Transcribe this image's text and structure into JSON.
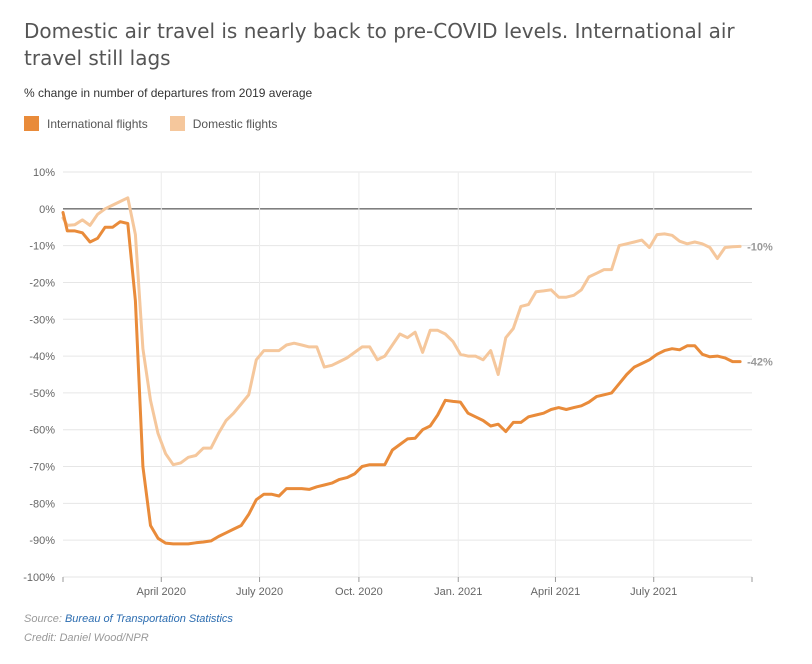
{
  "title": "Domestic air travel is nearly back to pre-COVID levels. International air travel still lags",
  "subtitle": "% change in number of departures from 2019 average",
  "legend": [
    {
      "label": "International flights",
      "color": "#e98b3a"
    },
    {
      "label": "Domestic flights",
      "color": "#f5c79c"
    }
  ],
  "footer": {
    "source_prefix": "Source: ",
    "source_link": "Bureau of Transportation Statistics",
    "credit": "Credit: Daniel Wood/NPR"
  },
  "chart_data": {
    "type": "line",
    "ylim": [
      -100,
      10
    ],
    "yticks": [
      10,
      0,
      -10,
      -20,
      -30,
      -40,
      -50,
      -60,
      -70,
      -80,
      -90,
      -100
    ],
    "ytick_labels": [
      "10%",
      "0%",
      "-10%",
      "-20%",
      "-30%",
      "-40%",
      "-50%",
      "-60%",
      "-70%",
      "-80%",
      "-90%",
      "-100%"
    ],
    "xlim": [
      "2020-01-01",
      "2021-09-30"
    ],
    "xticks": [
      "2020-04-01",
      "2020-07-01",
      "2020-10-01",
      "2021-01-01",
      "2021-04-01",
      "2021-07-01"
    ],
    "xtick_labels": [
      "April 2020",
      "July 2020",
      "Oct. 2020",
      "Jan. 2021",
      "April 2021",
      "July 2021"
    ],
    "grid": true,
    "legend_position": "top-left",
    "series": [
      {
        "name": "International flights",
        "color": "#e98b3a",
        "end_label": "-42%",
        "points": [
          [
            "2020-01-01",
            -1
          ],
          [
            "2020-01-05",
            -6
          ],
          [
            "2020-01-12",
            -6
          ],
          [
            "2020-01-19",
            -6.5
          ],
          [
            "2020-01-26",
            -9
          ],
          [
            "2020-02-02",
            -8
          ],
          [
            "2020-02-09",
            -5
          ],
          [
            "2020-02-16",
            -5
          ],
          [
            "2020-02-23",
            -3.5
          ],
          [
            "2020-03-01",
            -4
          ],
          [
            "2020-03-08",
            -25
          ],
          [
            "2020-03-15",
            -70
          ],
          [
            "2020-03-22",
            -86
          ],
          [
            "2020-03-29",
            -89.5
          ],
          [
            "2020-04-05",
            -90.8
          ],
          [
            "2020-04-12",
            -91
          ],
          [
            "2020-04-19",
            -91
          ],
          [
            "2020-04-26",
            -91
          ],
          [
            "2020-05-03",
            -90.7
          ],
          [
            "2020-05-10",
            -90.5
          ],
          [
            "2020-05-17",
            -90.2
          ],
          [
            "2020-05-24",
            -89
          ],
          [
            "2020-05-31",
            -88
          ],
          [
            "2020-06-07",
            -87
          ],
          [
            "2020-06-14",
            -86
          ],
          [
            "2020-06-21",
            -83
          ],
          [
            "2020-06-28",
            -79
          ],
          [
            "2020-07-05",
            -77.5
          ],
          [
            "2020-07-12",
            -77.5
          ],
          [
            "2020-07-19",
            -78
          ],
          [
            "2020-07-26",
            -76
          ],
          [
            "2020-08-02",
            -76
          ],
          [
            "2020-08-09",
            -76
          ],
          [
            "2020-08-16",
            -76.2
          ],
          [
            "2020-08-23",
            -75.5
          ],
          [
            "2020-08-30",
            -75
          ],
          [
            "2020-09-06",
            -74.5
          ],
          [
            "2020-09-13",
            -73.5
          ],
          [
            "2020-09-20",
            -73
          ],
          [
            "2020-09-27",
            -72
          ],
          [
            "2020-10-04",
            -70
          ],
          [
            "2020-10-11",
            -69.5
          ],
          [
            "2020-10-18",
            -69.5
          ],
          [
            "2020-10-25",
            -69.5
          ],
          [
            "2020-11-01",
            -65.5
          ],
          [
            "2020-11-08",
            -64
          ],
          [
            "2020-11-15",
            -62.5
          ],
          [
            "2020-11-22",
            -62.3
          ],
          [
            "2020-11-29",
            -60
          ],
          [
            "2020-12-06",
            -59
          ],
          [
            "2020-12-13",
            -56
          ],
          [
            "2020-12-20",
            -52
          ],
          [
            "2020-12-27",
            -52.3
          ],
          [
            "2021-01-03",
            -52.5
          ],
          [
            "2021-01-10",
            -55.5
          ],
          [
            "2021-01-17",
            -56.5
          ],
          [
            "2021-01-24",
            -57.5
          ],
          [
            "2021-01-31",
            -59
          ],
          [
            "2021-02-07",
            -58.5
          ],
          [
            "2021-02-14",
            -60.5
          ],
          [
            "2021-02-21",
            -58
          ],
          [
            "2021-02-28",
            -58
          ],
          [
            "2021-03-07",
            -56.5
          ],
          [
            "2021-03-14",
            -56
          ],
          [
            "2021-03-21",
            -55.5
          ],
          [
            "2021-03-28",
            -54.5
          ],
          [
            "2021-04-04",
            -54
          ],
          [
            "2021-04-11",
            -54.5
          ],
          [
            "2021-04-18",
            -54
          ],
          [
            "2021-04-25",
            -53.5
          ],
          [
            "2021-05-02",
            -52.5
          ],
          [
            "2021-05-09",
            -51
          ],
          [
            "2021-05-16",
            -50.5
          ],
          [
            "2021-05-23",
            -50
          ],
          [
            "2021-05-30",
            -47.5
          ],
          [
            "2021-06-06",
            -45
          ],
          [
            "2021-06-13",
            -43
          ],
          [
            "2021-06-20",
            -42
          ],
          [
            "2021-06-27",
            -41
          ],
          [
            "2021-07-04",
            -39.5
          ],
          [
            "2021-07-11",
            -38.5
          ],
          [
            "2021-07-18",
            -38
          ],
          [
            "2021-07-25",
            -38.3
          ],
          [
            "2021-08-01",
            -37.2
          ],
          [
            "2021-08-08",
            -37.2
          ],
          [
            "2021-08-15",
            -39.5
          ],
          [
            "2021-08-22",
            -40.2
          ],
          [
            "2021-08-29",
            -40
          ],
          [
            "2021-09-05",
            -40.5
          ],
          [
            "2021-09-12",
            -41.5
          ],
          [
            "2021-09-19",
            -41.5
          ]
        ]
      },
      {
        "name": "Domestic flights",
        "color": "#f5c79c",
        "end_label": "-10%",
        "points": [
          [
            "2020-01-01",
            -2.5
          ],
          [
            "2020-01-05",
            -4.5
          ],
          [
            "2020-01-12",
            -4.3
          ],
          [
            "2020-01-19",
            -3
          ],
          [
            "2020-01-26",
            -4.5
          ],
          [
            "2020-02-02",
            -1.5
          ],
          [
            "2020-02-09",
            0
          ],
          [
            "2020-02-16",
            1
          ],
          [
            "2020-02-23",
            2
          ],
          [
            "2020-03-01",
            3
          ],
          [
            "2020-03-08",
            -7
          ],
          [
            "2020-03-15",
            -38
          ],
          [
            "2020-03-22",
            -52
          ],
          [
            "2020-03-29",
            -61
          ],
          [
            "2020-04-05",
            -66.5
          ],
          [
            "2020-04-12",
            -69.5
          ],
          [
            "2020-04-19",
            -69
          ],
          [
            "2020-04-26",
            -67.5
          ],
          [
            "2020-05-03",
            -67
          ],
          [
            "2020-05-10",
            -65
          ],
          [
            "2020-05-17",
            -65
          ],
          [
            "2020-05-24",
            -61
          ],
          [
            "2020-05-31",
            -57.5
          ],
          [
            "2020-06-07",
            -55.5
          ],
          [
            "2020-06-14",
            -53
          ],
          [
            "2020-06-21",
            -50.5
          ],
          [
            "2020-06-28",
            -41
          ],
          [
            "2020-07-05",
            -38.5
          ],
          [
            "2020-07-12",
            -38.5
          ],
          [
            "2020-07-19",
            -38.5
          ],
          [
            "2020-07-26",
            -37
          ],
          [
            "2020-08-02",
            -36.5
          ],
          [
            "2020-08-09",
            -37
          ],
          [
            "2020-08-16",
            -37.5
          ],
          [
            "2020-08-23",
            -37.5
          ],
          [
            "2020-08-30",
            -43
          ],
          [
            "2020-09-06",
            -42.5
          ],
          [
            "2020-09-13",
            -41.5
          ],
          [
            "2020-09-20",
            -40.5
          ],
          [
            "2020-09-27",
            -39
          ],
          [
            "2020-10-04",
            -37.5
          ],
          [
            "2020-10-11",
            -37.5
          ],
          [
            "2020-10-18",
            -41
          ],
          [
            "2020-10-25",
            -40
          ],
          [
            "2020-11-01",
            -37
          ],
          [
            "2020-11-08",
            -34
          ],
          [
            "2020-11-15",
            -35
          ],
          [
            "2020-11-22",
            -33.5
          ],
          [
            "2020-11-29",
            -39
          ],
          [
            "2020-12-06",
            -33
          ],
          [
            "2020-12-13",
            -33
          ],
          [
            "2020-12-20",
            -34
          ],
          [
            "2020-12-27",
            -36
          ],
          [
            "2021-01-03",
            -39.5
          ],
          [
            "2021-01-10",
            -40
          ],
          [
            "2021-01-17",
            -40
          ],
          [
            "2021-01-24",
            -41
          ],
          [
            "2021-01-31",
            -38.5
          ],
          [
            "2021-02-07",
            -45
          ],
          [
            "2021-02-14",
            -35
          ],
          [
            "2021-02-21",
            -32.5
          ],
          [
            "2021-02-28",
            -26.5
          ],
          [
            "2021-03-07",
            -26
          ],
          [
            "2021-03-14",
            -22.5
          ],
          [
            "2021-03-21",
            -22.3
          ],
          [
            "2021-03-28",
            -22
          ],
          [
            "2021-04-04",
            -24
          ],
          [
            "2021-04-11",
            -24
          ],
          [
            "2021-04-18",
            -23.5
          ],
          [
            "2021-04-25",
            -22
          ],
          [
            "2021-05-02",
            -18.5
          ],
          [
            "2021-05-09",
            -17.5
          ],
          [
            "2021-05-16",
            -16.5
          ],
          [
            "2021-05-23",
            -16.5
          ],
          [
            "2021-05-30",
            -10
          ],
          [
            "2021-06-06",
            -9.5
          ],
          [
            "2021-06-13",
            -9
          ],
          [
            "2021-06-20",
            -8.5
          ],
          [
            "2021-06-27",
            -10.5
          ],
          [
            "2021-07-04",
            -7
          ],
          [
            "2021-07-11",
            -6.8
          ],
          [
            "2021-07-18",
            -7.2
          ],
          [
            "2021-07-25",
            -8.8
          ],
          [
            "2021-08-01",
            -9.5
          ],
          [
            "2021-08-08",
            -9
          ],
          [
            "2021-08-15",
            -9.5
          ],
          [
            "2021-08-22",
            -10.5
          ],
          [
            "2021-08-29",
            -13.5
          ],
          [
            "2021-09-05",
            -10.5
          ],
          [
            "2021-09-12",
            -10.3
          ],
          [
            "2021-09-19",
            -10.2
          ]
        ]
      }
    ]
  }
}
